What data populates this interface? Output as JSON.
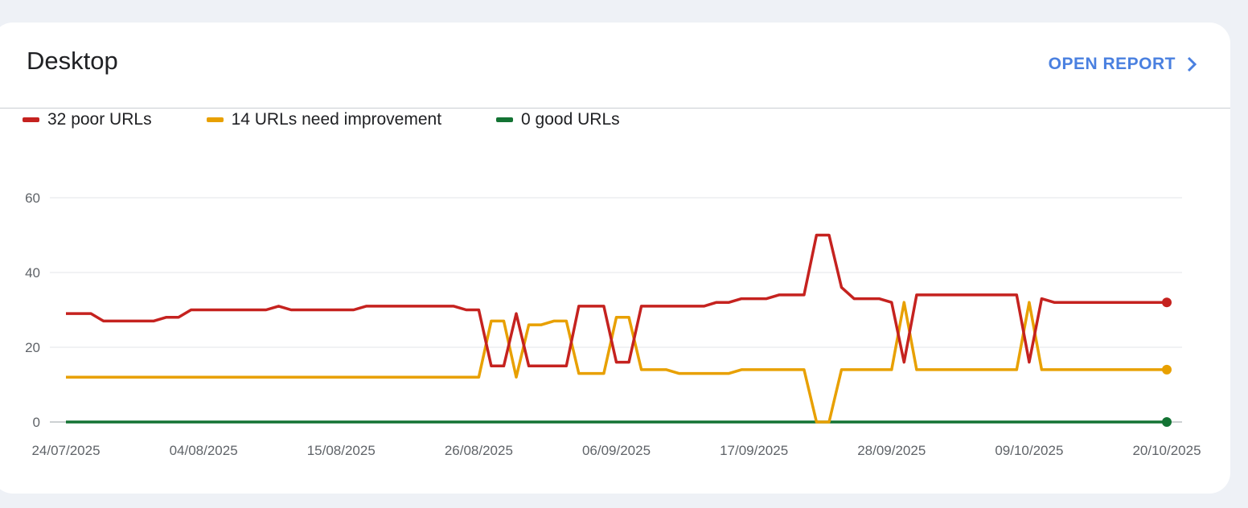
{
  "card": {
    "title": "Desktop",
    "open_report_label": "OPEN REPORT",
    "open_report_icon": "chevron-right-icon"
  },
  "chart_data": {
    "type": "line",
    "title": "Desktop",
    "x_start": "24/07/2025",
    "x_end": "20/10/2025",
    "x_tick_labels": [
      "24/07/2025",
      "04/08/2025",
      "15/08/2025",
      "26/08/2025",
      "06/09/2025",
      "17/09/2025",
      "28/09/2025",
      "09/10/2025",
      "20/10/2025"
    ],
    "y_ticks": [
      0,
      20,
      40,
      60
    ],
    "ylim": [
      0,
      60
    ],
    "grid": true,
    "legend_position": "top-left",
    "series": [
      {
        "name": "poor",
        "legend": "32 poor URLs",
        "color": "#c5221f",
        "values": [
          29,
          29,
          29,
          27,
          27,
          27,
          27,
          27,
          28,
          28,
          30,
          30,
          30,
          30,
          30,
          30,
          30,
          31,
          30,
          30,
          30,
          30,
          30,
          30,
          31,
          31,
          31,
          31,
          31,
          31,
          31,
          31,
          30,
          30,
          15,
          15,
          29,
          15,
          15,
          15,
          15,
          31,
          31,
          31,
          16,
          16,
          31,
          31,
          31,
          31,
          31,
          31,
          32,
          32,
          33,
          33,
          33,
          34,
          34,
          34,
          50,
          50,
          36,
          33,
          33,
          33,
          32,
          16,
          34,
          34,
          34,
          34,
          34,
          34,
          34,
          34,
          34,
          16,
          33,
          32,
          32,
          32,
          32,
          32,
          32,
          32,
          32,
          32,
          32
        ]
      },
      {
        "name": "needs_improvement",
        "legend": "14 URLs need improvement",
        "color": "#e8a000",
        "values": [
          12,
          12,
          12,
          12,
          12,
          12,
          12,
          12,
          12,
          12,
          12,
          12,
          12,
          12,
          12,
          12,
          12,
          12,
          12,
          12,
          12,
          12,
          12,
          12,
          12,
          12,
          12,
          12,
          12,
          12,
          12,
          12,
          12,
          12,
          27,
          27,
          12,
          26,
          26,
          27,
          27,
          13,
          13,
          13,
          28,
          28,
          14,
          14,
          14,
          13,
          13,
          13,
          13,
          13,
          14,
          14,
          14,
          14,
          14,
          14,
          0,
          0,
          14,
          14,
          14,
          14,
          14,
          32,
          14,
          14,
          14,
          14,
          14,
          14,
          14,
          14,
          14,
          32,
          14,
          14,
          14,
          14,
          14,
          14,
          14,
          14,
          14,
          14,
          14
        ]
      },
      {
        "name": "good",
        "legend": "0 good URLs",
        "color": "#137333",
        "values": [
          0,
          0,
          0,
          0,
          0,
          0,
          0,
          0,
          0,
          0,
          0,
          0,
          0,
          0,
          0,
          0,
          0,
          0,
          0,
          0,
          0,
          0,
          0,
          0,
          0,
          0,
          0,
          0,
          0,
          0,
          0,
          0,
          0,
          0,
          0,
          0,
          0,
          0,
          0,
          0,
          0,
          0,
          0,
          0,
          0,
          0,
          0,
          0,
          0,
          0,
          0,
          0,
          0,
          0,
          0,
          0,
          0,
          0,
          0,
          0,
          0,
          0,
          0,
          0,
          0,
          0,
          0,
          0,
          0,
          0,
          0,
          0,
          0,
          0,
          0,
          0,
          0,
          0,
          0,
          0,
          0,
          0,
          0,
          0,
          0,
          0,
          0,
          0,
          0
        ]
      }
    ]
  }
}
